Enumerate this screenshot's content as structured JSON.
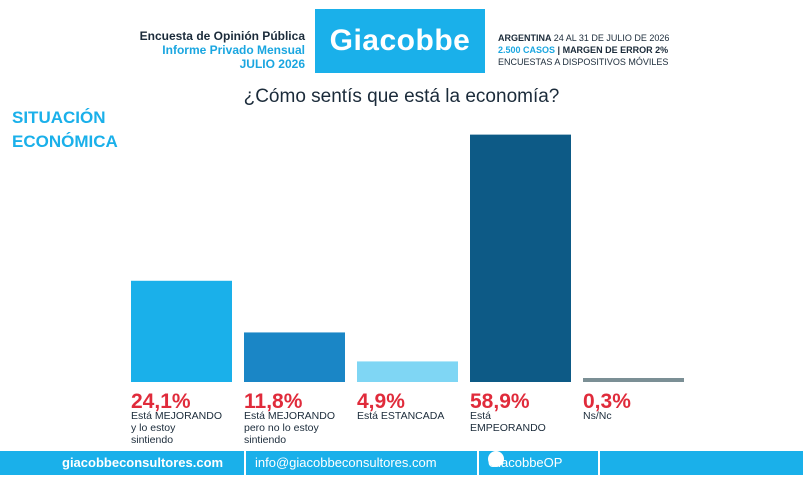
{
  "header": {
    "line1": "Encuesta de Opinión Pública",
    "line2": "Informe Privado Mensual",
    "line3": "JULIO 2026",
    "logo": "Giacobbe",
    "right_line1_bold": "ARGENTINA",
    "right_line1_rest": "24 AL 31 DE JULIO DE 2026",
    "right_line2_blue": "2.500 CASOS",
    "right_line2_rest": "| MARGEN DE ERROR 2%",
    "right_line3": "ENCUESTAS A DISPOSITIVOS MÓVILES"
  },
  "section_title": [
    "SITUACIÓN",
    "ECONÓMICA"
  ],
  "chart_data": {
    "type": "bar",
    "title": "¿Cómo sentís que está la economía?",
    "categories": [
      [
        "Está MEJORANDO",
        "y lo estoy",
        "sintiendo"
      ],
      [
        "Está MEJORANDO",
        "pero no lo estoy",
        "sintiendo"
      ],
      [
        "Está ESTANCADA"
      ],
      [
        "Está",
        "EMPEORANDO"
      ],
      [
        "Ns/Nc"
      ]
    ],
    "values": [
      24.1,
      11.8,
      4.9,
      58.9,
      0.3
    ],
    "value_labels": [
      "24,1%",
      "11,8%",
      "4,9%",
      "58,9%",
      "0,3%"
    ],
    "colors": [
      "#1ab0ea",
      "#1a86c6",
      "#7fd6f4",
      "#0d5a86",
      "#7b8f95"
    ],
    "value_label_color": "#e02b3b",
    "ylim": [
      0,
      60
    ],
    "grid": false
  },
  "footer": {
    "site": "giacobbeconsultores.com",
    "email": "info@giacobbeconsultores.com",
    "twitter": "GiacobbeOP"
  }
}
